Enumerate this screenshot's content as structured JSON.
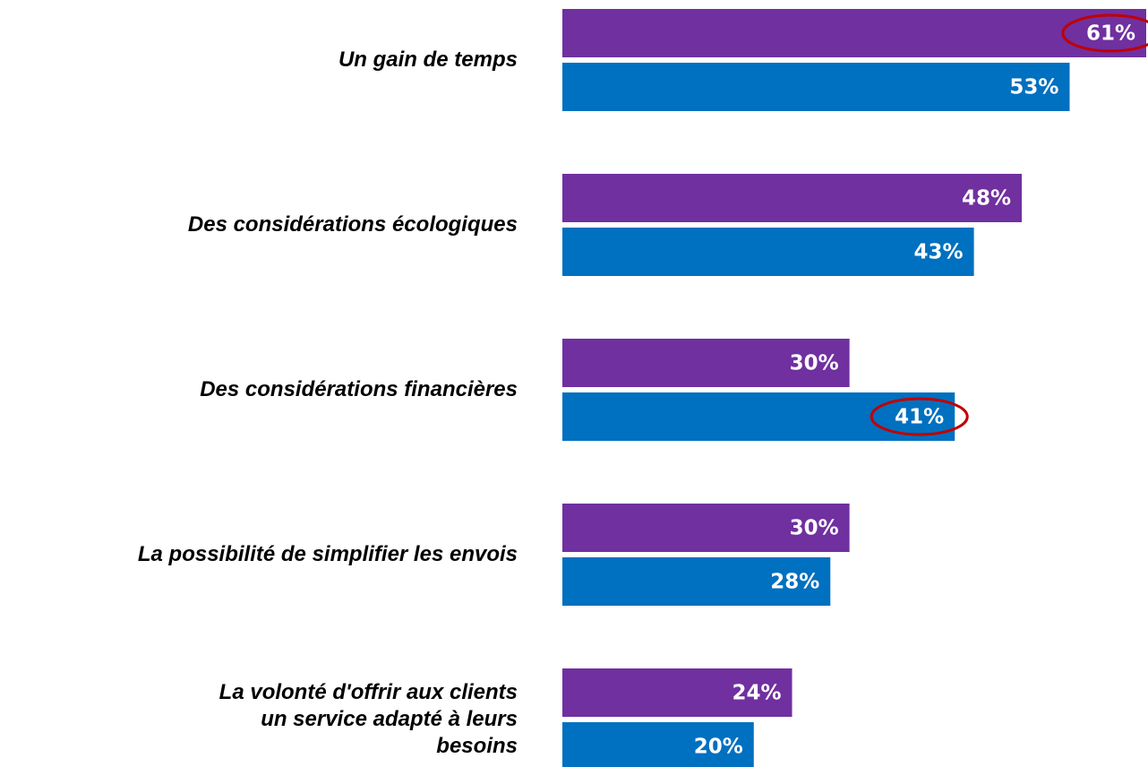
{
  "chart_data": {
    "type": "bar",
    "orientation": "horizontal",
    "categories": [
      "Un gain de temps",
      "Des considérations écologiques",
      "Des considérations financières",
      "La possibilité de simplifier les envois",
      "La volonté d'offrir aux clients\nun service adapté à leurs\nbesoins"
    ],
    "series": [
      {
        "color": "#7030a0",
        "values": [
          61,
          48,
          30,
          30,
          24
        ],
        "value_labels": [
          "61%",
          "48%",
          "30%",
          "30%",
          "24%"
        ],
        "highlight": [
          0
        ]
      },
      {
        "color": "#0070c0",
        "values": [
          53,
          43,
          41,
          28,
          20
        ],
        "value_labels": [
          "53%",
          "43%",
          "41%",
          "28%",
          "20%"
        ],
        "highlight": [
          2
        ]
      }
    ],
    "highlight_color": "#c00000"
  }
}
